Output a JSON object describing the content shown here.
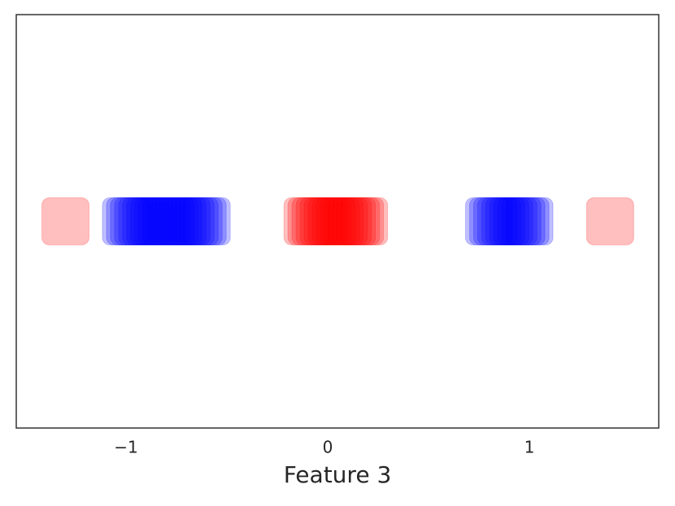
{
  "chart_data": {
    "type": "scatter",
    "x_label": "Feature 3",
    "xlim": [
      -1.544,
      1.641
    ],
    "ylim": [
      -1,
      1
    ],
    "xticks": [
      {
        "value": -1,
        "label": "−1"
      },
      0,
      1
    ],
    "series": [
      {
        "color": "#ff0000",
        "x": [
          -1.3,
          -0.1,
          -0.08,
          -0.06,
          -0.04,
          -0.02,
          0,
          0.02,
          0.04,
          0.06,
          0.08,
          0.1,
          0.12,
          0.14,
          0.16,
          0.18,
          1.4
        ],
        "y": [
          0,
          0,
          0,
          0,
          0,
          0,
          0,
          0,
          0,
          0,
          0,
          0,
          0,
          0,
          0,
          0,
          0
        ]
      },
      {
        "color": "#0000ff",
        "x": [
          -1.0,
          -0.98,
          -0.96,
          -0.94,
          -0.92,
          -0.9,
          -0.88,
          -0.86,
          -0.84,
          -0.82,
          -0.8,
          -0.78,
          -0.76,
          -0.74,
          -0.72,
          -0.7,
          -0.68,
          -0.66,
          -0.64,
          -0.62,
          -0.6,
          0.8,
          0.82,
          0.84,
          0.86,
          0.88,
          0.9,
          0.92,
          0.94,
          0.96,
          0.98,
          1.0
        ],
        "y": [
          0,
          0,
          0,
          0,
          0,
          0,
          0,
          0,
          0,
          0,
          0,
          0,
          0,
          0,
          0,
          0,
          0,
          0,
          0,
          0,
          0,
          0,
          0,
          0,
          0,
          0,
          0,
          0,
          0,
          0,
          0,
          0
        ]
      }
    ]
  }
}
